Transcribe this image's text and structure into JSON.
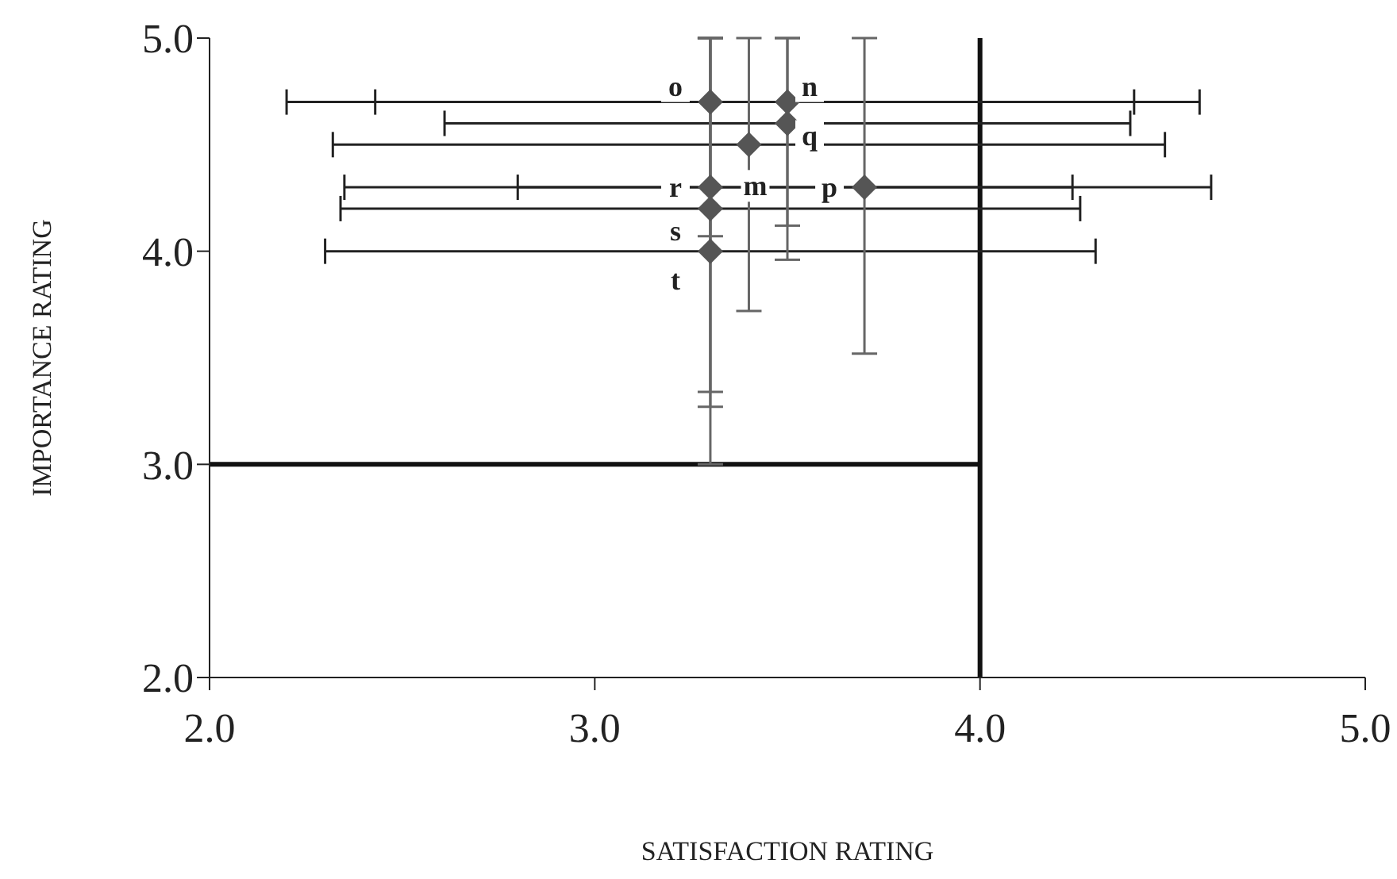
{
  "chart_data": {
    "type": "scatter",
    "xlabel": "SATISFACTION RATING",
    "ylabel": "IMPORTANCE RATING",
    "x": [
      3.3,
      3.5,
      3.5,
      3.4,
      3.3,
      3.7,
      3.3,
      3.3
    ],
    "series": [
      {
        "color": "#555555",
        "values": [
          4.7,
          4.7,
          4.6,
          4.5,
          4.3,
          4.3,
          4.2,
          4.0
        ],
        "errors": [
          [
            4.07,
            5.0
          ],
          [
            3.96,
            5.0
          ],
          [
            4.12,
            5.0
          ],
          [
            3.72,
            5.0
          ],
          [
            3.27,
            5.0
          ],
          [
            3.52,
            5.0
          ],
          [
            3.34,
            5.0
          ],
          [
            3.0,
            5.0
          ]
        ],
        "xerrors": [
          1.1,
          1.07,
          0.89,
          1.08,
          [
            2.35,
            4.24
          ],
          0.9,
          0.96,
          1.0
        ]
      }
    ],
    "annotations": [
      {
        "text": "o",
        "x": 3.3,
        "y": 4.7
      },
      {
        "text": "n",
        "x": 3.5,
        "y": 4.7
      },
      {
        "text": "q",
        "x": 3.5,
        "y": 4.6
      },
      {
        "text": "m",
        "x": 3.4,
        "y": 4.5
      },
      {
        "text": "r",
        "x": 3.3,
        "y": 4.3
      },
      {
        "text": "p",
        "x": 3.7,
        "y": 4.3
      },
      {
        "text": "s",
        "x": 3.3,
        "y": 4.2
      },
      {
        "text": "t",
        "x": 3.3,
        "y": 4.0
      }
    ],
    "ref_lines": [
      {
        "axis": "y",
        "value": 3,
        "color": "#111111"
      },
      {
        "axis": "x",
        "value": 4,
        "color": "#111111"
      }
    ],
    "xlim": [
      2,
      5
    ],
    "ylim": [
      2,
      5
    ],
    "xticks": [
      {
        "value": 2,
        "label": "2.0"
      },
      {
        "value": 3,
        "label": "3.0"
      },
      {
        "value": 4,
        "label": "4.0"
      },
      {
        "value": 5,
        "label": "5.0"
      }
    ],
    "yticks": [
      {
        "value": 2,
        "label": "2.0"
      },
      {
        "value": 3,
        "label": "3.0"
      },
      {
        "value": 4,
        "label": "4.0"
      },
      {
        "value": 5,
        "label": "5.0"
      }
    ],
    "grid": false,
    "legend": false,
    "marker": "diamond"
  }
}
